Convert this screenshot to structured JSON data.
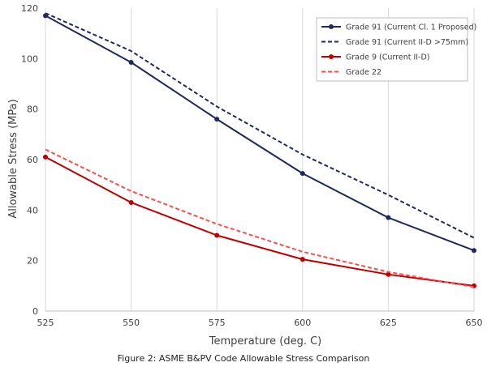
{
  "caption": "Figure 2: ASME B&PV Code Allowable Stress Comparison",
  "chart_data": {
    "type": "line",
    "title": "",
    "xlabel": "Temperature (deg. C)",
    "ylabel": "Allowable Stress (MPa)",
    "xlim": [
      525,
      650
    ],
    "ylim": [
      0,
      120
    ],
    "xticks": [
      525,
      550,
      575,
      600,
      625,
      650
    ],
    "yticks": [
      0,
      20,
      40,
      60,
      80,
      100,
      120
    ],
    "grid": "vertical",
    "legend_position": "top-right",
    "x": [
      525,
      550,
      575,
      600,
      625,
      650
    ],
    "series": [
      {
        "name": "Grade 91 (Current Cl. 1 Proposed)",
        "color": "#1f2a5a",
        "style": "solid",
        "markers": true,
        "values": [
          117,
          98.5,
          76,
          54.5,
          37,
          24
        ]
      },
      {
        "name": "Grade 91 (Current II-D >75mm)",
        "color": "#1f2a5a",
        "style": "dashed",
        "markers": false,
        "values": [
          118,
          103,
          81,
          62,
          46,
          29
        ]
      },
      {
        "name": "Grade 9 (Current II-D)",
        "color": "#c00000",
        "style": "solid",
        "markers": true,
        "values": [
          61,
          43,
          30,
          20.5,
          14.5,
          10
        ]
      },
      {
        "name": "Grade 22",
        "color": "#ff4d4d",
        "style": "dashed",
        "markers": false,
        "values": [
          64,
          47.5,
          34.5,
          23.5,
          15.5,
          9.5
        ]
      }
    ]
  }
}
